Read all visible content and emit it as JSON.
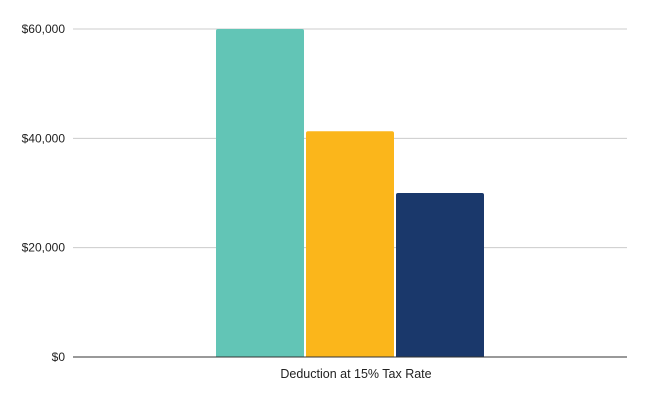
{
  "chart_data": {
    "type": "bar",
    "categories": [
      "Deduction at 15% Tax Rate"
    ],
    "series": [
      {
        "values": [
          60000
        ],
        "color": "#62c5b6"
      },
      {
        "values": [
          41300
        ],
        "color": "#fbb61b"
      },
      {
        "values": [
          30000
        ],
        "color": "#1a386b"
      }
    ],
    "title": "",
    "xlabel": "",
    "ylabel": "",
    "ylim": [
      0,
      60000
    ],
    "yticks": [
      0,
      20000,
      40000,
      60000
    ],
    "ytick_labels": [
      "$0",
      "$20,000",
      "$40,000",
      "$60,000"
    ],
    "grid": true,
    "legend": "none",
    "colors": {
      "grid": "#cccccc",
      "axis": "#333333"
    }
  }
}
